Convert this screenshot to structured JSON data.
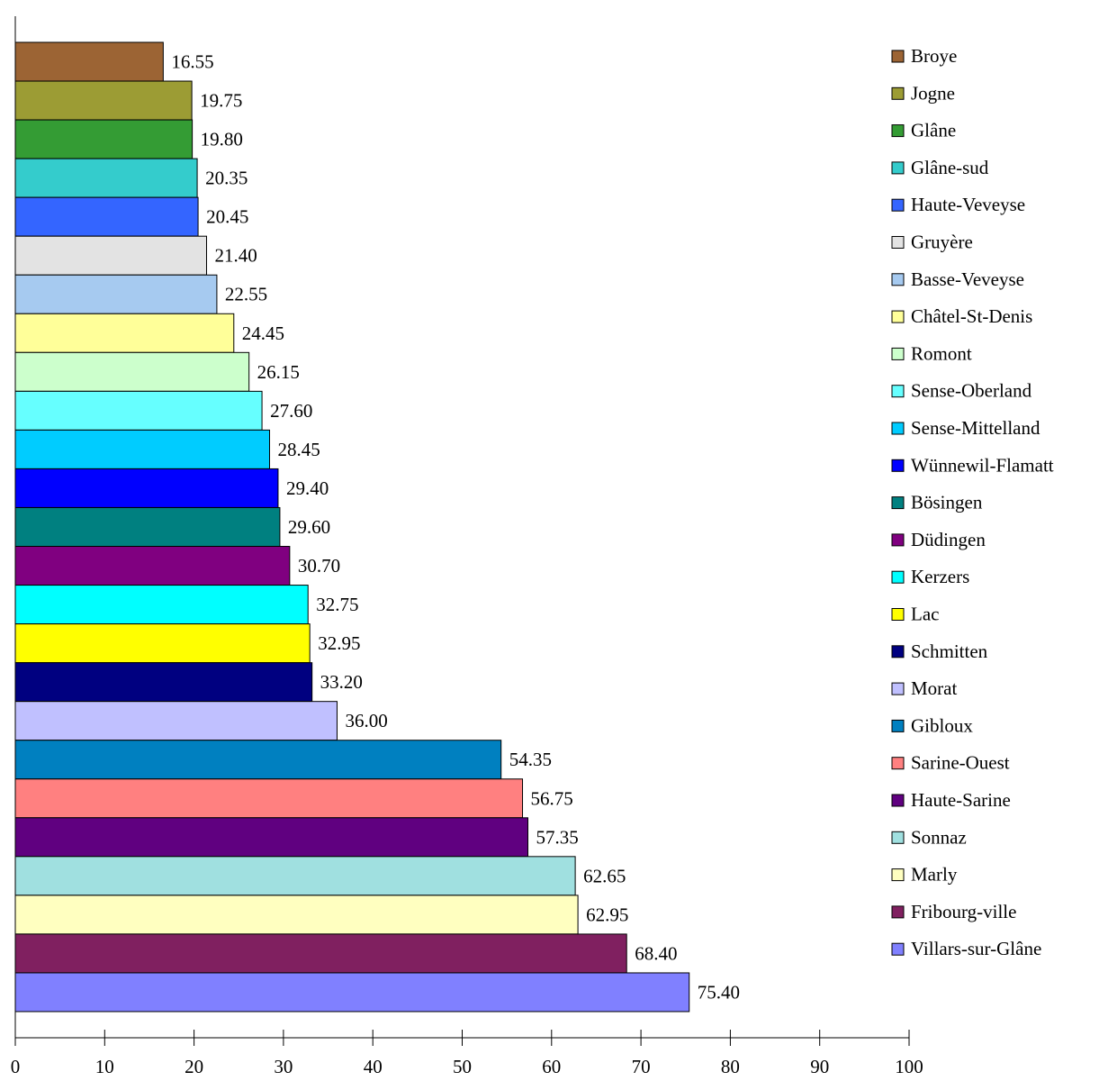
{
  "chart_data": {
    "type": "bar",
    "orientation": "horizontal",
    "xlim": [
      0,
      100
    ],
    "x_ticks": [
      0,
      10,
      20,
      30,
      40,
      50,
      60,
      70,
      80,
      90,
      100
    ],
    "grid": false,
    "legend_position": "right",
    "title": "",
    "xlabel": "",
    "ylabel": "",
    "series": [
      {
        "name": "Broye",
        "value": 16.55,
        "label": "16.55",
        "color": "#9c6434"
      },
      {
        "name": "Jogne",
        "value": 19.75,
        "label": "19.75",
        "color": "#9c9c34"
      },
      {
        "name": "Glâne",
        "value": 19.8,
        "label": "19.80",
        "color": "#349c34"
      },
      {
        "name": "Glâne-sud",
        "value": 20.35,
        "label": "20.35",
        "color": "#34cccc"
      },
      {
        "name": "Haute-Veveyse",
        "value": 20.45,
        "label": "20.45",
        "color": "#3465ff"
      },
      {
        "name": "Gruyère",
        "value": 21.4,
        "label": "21.40",
        "color": "#e3e3e3"
      },
      {
        "name": "Basse-Veveyse",
        "value": 22.55,
        "label": "22.55",
        "color": "#a6caf0"
      },
      {
        "name": "Châtel-St-Denis",
        "value": 24.45,
        "label": "24.45",
        "color": "#ffff99"
      },
      {
        "name": "Romont",
        "value": 26.15,
        "label": "26.15",
        "color": "#ccffcc"
      },
      {
        "name": "Sense-Oberland",
        "value": 27.6,
        "label": "27.60",
        "color": "#66ffff"
      },
      {
        "name": "Sense-Mittelland",
        "value": 28.45,
        "label": "28.45",
        "color": "#00ccff"
      },
      {
        "name": "Wünnewil-Flamatt",
        "value": 29.4,
        "label": "29.40",
        "color": "#0000ff"
      },
      {
        "name": "Bösingen",
        "value": 29.6,
        "label": "29.60",
        "color": "#008080"
      },
      {
        "name": "Düdingen",
        "value": 30.7,
        "label": "30.70",
        "color": "#800080"
      },
      {
        "name": "Kerzers",
        "value": 32.75,
        "label": "32.75",
        "color": "#00ffff"
      },
      {
        "name": "Lac",
        "value": 32.95,
        "label": "32.95",
        "color": "#ffff00"
      },
      {
        "name": "Schmitten",
        "value": 33.2,
        "label": "33.20",
        "color": "#000080"
      },
      {
        "name": "Morat",
        "value": 36.0,
        "label": "36.00",
        "color": "#c0c0ff"
      },
      {
        "name": "Gibloux",
        "value": 54.35,
        "label": "54.35",
        "color": "#0080c0"
      },
      {
        "name": "Sarine-Ouest",
        "value": 56.75,
        "label": "56.75",
        "color": "#ff8080"
      },
      {
        "name": "Haute-Sarine",
        "value": 57.35,
        "label": "57.35",
        "color": "#600080"
      },
      {
        "name": "Sonnaz",
        "value": 62.65,
        "label": "62.65",
        "color": "#a0e0e0"
      },
      {
        "name": "Marly",
        "value": 62.95,
        "label": "62.95",
        "color": "#ffffc0"
      },
      {
        "name": "Fribourg-ville",
        "value": 68.4,
        "label": "68.40",
        "color": "#802060"
      },
      {
        "name": "Villars-sur-Glâne",
        "value": 75.4,
        "label": "75.40",
        "color": "#8080ff"
      }
    ]
  }
}
